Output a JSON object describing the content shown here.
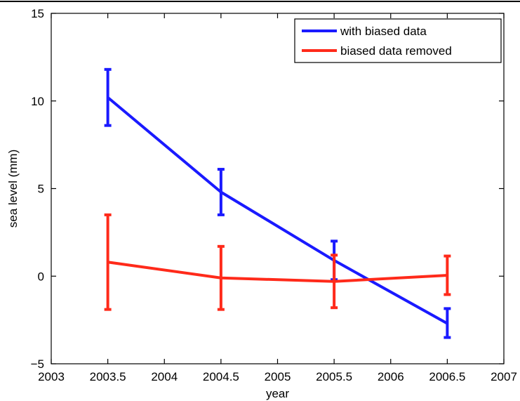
{
  "chart_data": {
    "type": "line",
    "title": "",
    "xlabel": "year",
    "ylabel": "sea level (mm)",
    "xlim": [
      2003,
      2007
    ],
    "ylim": [
      -5,
      15
    ],
    "xticks": [
      2003,
      2003.5,
      2004,
      2004.5,
      2005,
      2005.5,
      2006,
      2006.5,
      2007
    ],
    "xtick_labels": [
      "2003",
      "2003.5",
      "2004",
      "2004.5",
      "2005",
      "2005.5",
      "2006",
      "2006.5",
      "2007"
    ],
    "yticks": [
      -5,
      0,
      5,
      10,
      15
    ],
    "ytick_labels": [
      "−5",
      "0",
      "5",
      "10",
      "15"
    ],
    "grid": false,
    "legend_position": "top-right",
    "series": [
      {
        "name": "with biased data",
        "color": "#1a1aff",
        "x": [
          2003.5,
          2004.5,
          2005.5,
          2006.5
        ],
        "y": [
          10.2,
          4.8,
          0.9,
          -2.7
        ],
        "err_low": [
          8.6,
          3.5,
          -0.2,
          -3.5
        ],
        "err_high": [
          11.8,
          6.1,
          2.0,
          -1.85
        ]
      },
      {
        "name": "biased data removed",
        "color": "#ff2a1a",
        "x": [
          2003.5,
          2004.5,
          2005.5,
          2006.5
        ],
        "y": [
          0.8,
          -0.1,
          -0.3,
          0.05
        ],
        "err_low": [
          -1.9,
          -1.9,
          -1.8,
          -1.05
        ],
        "err_high": [
          3.5,
          1.7,
          1.2,
          1.15
        ]
      }
    ]
  }
}
